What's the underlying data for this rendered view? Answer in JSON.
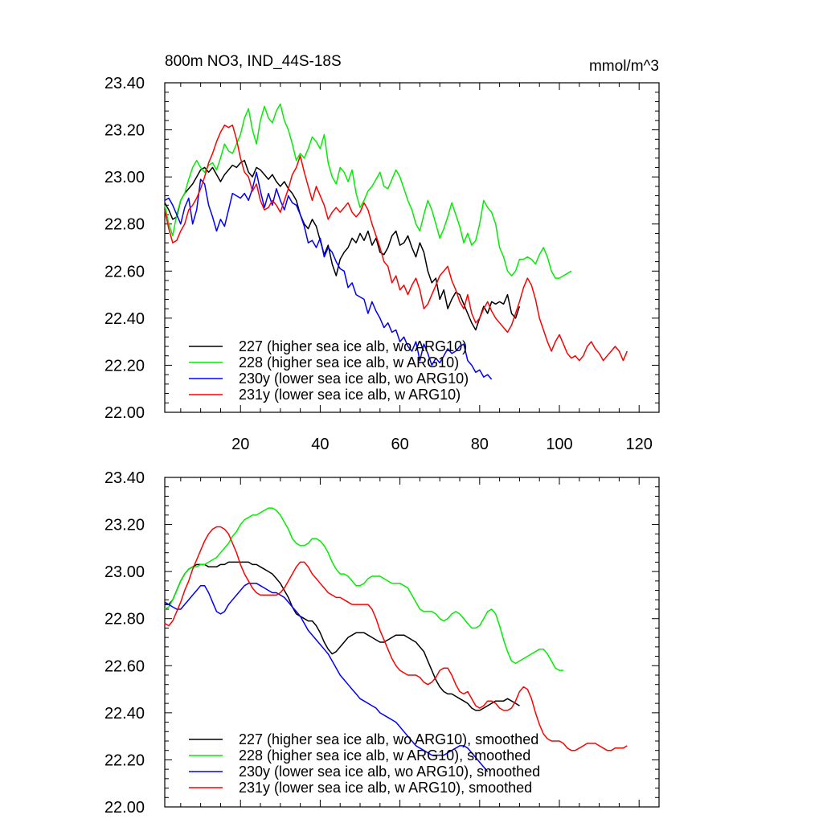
{
  "chart_data": [
    {
      "type": "line",
      "title_left": "800m NO3, IND_44S-18S",
      "title_right": "mmol/m^3",
      "xlabel": "",
      "ylabel": "",
      "xlim": [
        1,
        125
      ],
      "ylim": [
        22.0,
        23.4
      ],
      "y_ticks": [
        22.0,
        22.2,
        22.4,
        22.6,
        22.8,
        23.0,
        23.2,
        23.4
      ],
      "y_tick_labels": [
        "22.00",
        "22.20",
        "22.40",
        "22.60",
        "22.80",
        "23.00",
        "23.20",
        "23.40"
      ],
      "x_ticks": [
        20,
        40,
        60,
        80,
        100,
        120
      ],
      "x_tick_labels": [
        "20",
        "40",
        "60",
        "80",
        "100",
        "120"
      ],
      "show_x_tick_labels": true,
      "legend_position": "bottom-left",
      "series": [
        {
          "name": "227 (higher sea ice alb, wo ARG10)",
          "color": "#000000",
          "x_start": 1,
          "values": [
            22.89,
            22.86,
            22.82,
            22.83,
            22.9,
            22.93,
            22.95,
            22.97,
            23.0,
            23.03,
            23.04,
            23.02,
            23.04,
            23.01,
            22.98,
            23.01,
            23.03,
            23.05,
            23.04,
            23.06,
            23.07,
            23.02,
            23.0,
            23.04,
            23.03,
            23.01,
            22.99,
            23.01,
            22.98,
            22.96,
            22.98,
            22.95,
            22.93,
            22.9,
            22.84,
            22.8,
            22.78,
            22.82,
            22.79,
            22.73,
            22.67,
            22.71,
            22.63,
            22.58,
            22.65,
            22.68,
            22.7,
            22.74,
            22.72,
            22.76,
            22.73,
            22.77,
            22.71,
            22.74,
            22.68,
            22.67,
            22.7,
            22.75,
            22.77,
            22.71,
            22.72,
            22.75,
            22.7,
            22.66,
            22.72,
            22.68,
            22.6,
            22.55,
            22.57,
            22.48,
            22.52,
            22.44,
            22.48,
            22.51,
            22.5,
            22.46,
            22.42,
            22.38,
            22.35,
            22.4,
            22.45,
            22.42,
            22.47,
            22.46,
            22.47,
            22.46,
            22.5,
            22.42,
            22.4,
            22.45
          ]
        },
        {
          "name": "228 (higher sea ice alb, w ARG10)",
          "color": "#00ee00",
          "x_start": 1,
          "values": [
            22.88,
            22.8,
            22.75,
            22.84,
            22.9,
            22.93,
            22.99,
            23.04,
            23.07,
            23.04,
            23.02,
            23.05,
            23.06,
            23.03,
            23.08,
            23.14,
            23.11,
            23.1,
            23.14,
            23.18,
            23.25,
            23.29,
            23.2,
            23.14,
            23.24,
            23.3,
            23.25,
            23.23,
            23.28,
            23.31,
            23.24,
            23.2,
            23.14,
            23.07,
            23.1,
            23.08,
            23.12,
            23.17,
            23.15,
            23.12,
            23.18,
            23.06,
            23.0,
            22.97,
            23.04,
            23.02,
            22.98,
            23.03,
            22.93,
            22.87,
            22.9,
            22.94,
            22.96,
            22.99,
            23.02,
            22.96,
            22.95,
            22.99,
            23.03,
            23.0,
            22.95,
            22.9,
            22.86,
            22.8,
            22.77,
            22.84,
            22.9,
            22.86,
            22.8,
            22.74,
            22.78,
            22.83,
            22.89,
            22.84,
            22.79,
            22.72,
            22.76,
            22.71,
            22.73,
            22.8,
            22.9,
            22.87,
            22.85,
            22.8,
            22.7,
            22.66,
            22.6,
            22.58,
            22.6,
            22.65,
            22.65,
            22.66,
            22.65,
            22.63,
            22.67,
            22.7,
            22.66,
            22.6,
            22.57,
            22.57,
            22.58,
            22.59,
            22.6
          ]
        },
        {
          "name": "230y (lower sea ice alb, wo ARG10)",
          "color": "#0000ff",
          "x_start": 1,
          "values": [
            22.9,
            22.91,
            22.88,
            22.84,
            22.8,
            22.87,
            22.91,
            22.8,
            22.86,
            22.99,
            22.97,
            22.88,
            22.83,
            22.77,
            22.82,
            22.79,
            22.86,
            22.93,
            22.92,
            22.91,
            22.93,
            22.9,
            22.95,
            23.02,
            22.94,
            22.87,
            22.93,
            22.88,
            22.95,
            22.9,
            22.86,
            22.92,
            22.89,
            22.88,
            22.84,
            22.79,
            22.72,
            22.73,
            22.7,
            22.74,
            22.66,
            22.7,
            22.68,
            22.64,
            22.61,
            22.6,
            22.53,
            22.55,
            22.5,
            22.49,
            22.48,
            22.42,
            22.47,
            22.43,
            22.4,
            22.36,
            22.38,
            22.34,
            22.35,
            22.3,
            22.32,
            22.28,
            22.26,
            22.3,
            22.22,
            22.29,
            22.25,
            22.2,
            22.23,
            22.21,
            22.24,
            22.27,
            22.25,
            22.26,
            22.28,
            22.29,
            22.22,
            22.2,
            22.17,
            22.18,
            22.15,
            22.16,
            22.14
          ]
        },
        {
          "name": "231y (lower sea ice alb, w ARG10)",
          "color": "#ff0000",
          "x_start": 1,
          "values": [
            22.86,
            22.78,
            22.72,
            22.73,
            22.77,
            22.8,
            22.86,
            22.88,
            22.91,
            22.95,
            23.0,
            23.06,
            23.1,
            23.15,
            23.19,
            23.22,
            23.21,
            23.22,
            23.16,
            23.08,
            23.02,
            23.0,
            22.94,
            22.97,
            22.9,
            22.86,
            22.87,
            22.9,
            22.88,
            22.85,
            22.9,
            22.95,
            23.01,
            23.04,
            23.09,
            23.02,
            22.96,
            22.9,
            22.96,
            22.92,
            22.88,
            22.82,
            22.85,
            22.87,
            22.85,
            22.87,
            22.89,
            22.85,
            22.83,
            22.85,
            22.89,
            22.86,
            22.8,
            22.75,
            22.7,
            22.64,
            22.62,
            22.55,
            22.58,
            22.52,
            22.54,
            22.5,
            22.54,
            22.57,
            22.52,
            22.44,
            22.46,
            22.5,
            22.54,
            22.58,
            22.6,
            22.62,
            22.56,
            22.52,
            22.47,
            22.44,
            22.5,
            22.42,
            22.38,
            22.4,
            22.44,
            22.47,
            22.43,
            22.4,
            22.38,
            22.36,
            22.34,
            22.37,
            22.42,
            22.47,
            22.53,
            22.57,
            22.54,
            22.48,
            22.4,
            22.35,
            22.3,
            22.26,
            22.3,
            22.33,
            22.29,
            22.25,
            22.23,
            22.24,
            22.22,
            22.24,
            22.28,
            22.3,
            22.27,
            22.25,
            22.22,
            22.24,
            22.26,
            22.28,
            22.26,
            22.22,
            22.26
          ]
        }
      ]
    },
    {
      "type": "line",
      "xlim": [
        1,
        125
      ],
      "ylim": [
        22.0,
        23.4
      ],
      "y_ticks": [
        22.0,
        22.2,
        22.4,
        22.6,
        22.8,
        23.0,
        23.2,
        23.4
      ],
      "y_tick_labels": [
        "22.00",
        "22.20",
        "22.40",
        "22.60",
        "22.80",
        "23.00",
        "23.20",
        "23.40"
      ],
      "x_ticks": [
        20,
        40,
        60,
        80,
        100,
        120
      ],
      "show_x_tick_labels": false,
      "legend_position": "bottom-left",
      "series": [
        {
          "name": "227 (higher sea ice alb, wo ARG10), smoothed",
          "color": "#000000",
          "x_start": 1,
          "values": [
            22.86,
            22.86,
            22.88,
            22.92,
            22.96,
            22.99,
            23.01,
            23.02,
            23.03,
            23.03,
            23.03,
            23.02,
            23.02,
            23.02,
            23.03,
            23.03,
            23.04,
            23.04,
            23.04,
            23.04,
            23.04,
            23.04,
            23.03,
            23.03,
            23.02,
            23.01,
            23.0,
            22.99,
            22.97,
            22.95,
            22.92,
            22.89,
            22.85,
            22.82,
            22.81,
            22.8,
            22.79,
            22.79,
            22.77,
            22.74,
            22.7,
            22.67,
            22.65,
            22.66,
            22.68,
            22.7,
            22.72,
            22.73,
            22.74,
            22.74,
            22.74,
            22.73,
            22.72,
            22.71,
            22.7,
            22.7,
            22.71,
            22.72,
            22.73,
            22.73,
            22.73,
            22.72,
            22.71,
            22.7,
            22.68,
            22.66,
            22.62,
            22.58,
            22.54,
            22.51,
            22.49,
            22.48,
            22.48,
            22.47,
            22.46,
            22.45,
            22.44,
            22.42,
            22.41,
            22.41,
            22.42,
            22.43,
            22.44,
            22.45,
            22.45,
            22.45,
            22.46,
            22.45,
            22.44,
            22.43
          ]
        },
        {
          "name": "228 (higher sea ice alb, w ARG10), smoothed",
          "color": "#00ee00",
          "x_start": 1,
          "values": [
            22.84,
            22.85,
            22.88,
            22.92,
            22.96,
            22.99,
            23.01,
            23.02,
            23.02,
            23.03,
            23.03,
            23.04,
            23.05,
            23.06,
            23.08,
            23.1,
            23.12,
            23.15,
            23.17,
            23.2,
            23.22,
            23.23,
            23.24,
            23.24,
            23.25,
            23.26,
            23.27,
            23.27,
            23.26,
            23.24,
            23.21,
            23.18,
            23.14,
            23.12,
            23.11,
            23.11,
            23.12,
            23.14,
            23.14,
            23.13,
            23.11,
            23.08,
            23.04,
            23.01,
            22.99,
            22.99,
            22.98,
            22.96,
            22.94,
            22.94,
            22.95,
            22.97,
            22.98,
            22.98,
            22.98,
            22.97,
            22.96,
            22.95,
            22.95,
            22.95,
            22.94,
            22.93,
            22.9,
            22.87,
            22.84,
            22.83,
            22.83,
            22.83,
            22.82,
            22.8,
            22.79,
            22.8,
            22.82,
            22.83,
            22.82,
            22.8,
            22.78,
            22.76,
            22.76,
            22.77,
            22.8,
            22.83,
            22.84,
            22.82,
            22.77,
            22.71,
            22.66,
            22.62,
            22.61,
            22.62,
            22.63,
            22.64,
            22.65,
            22.66,
            22.67,
            22.67,
            22.65,
            22.62,
            22.59,
            22.58,
            22.58
          ]
        },
        {
          "name": "230y (lower sea ice alb, wo ARG10), smoothed",
          "color": "#0000ff",
          "x_start": 1,
          "values": [
            22.87,
            22.86,
            22.85,
            22.84,
            22.84,
            22.86,
            22.88,
            22.9,
            22.92,
            22.94,
            22.94,
            22.91,
            22.87,
            22.83,
            22.82,
            22.83,
            22.86,
            22.88,
            22.9,
            22.92,
            22.94,
            22.95,
            22.95,
            22.95,
            22.94,
            22.93,
            22.92,
            22.91,
            22.91,
            22.9,
            22.89,
            22.87,
            22.85,
            22.83,
            22.81,
            22.78,
            22.75,
            22.73,
            22.71,
            22.69,
            22.67,
            22.65,
            22.62,
            22.59,
            22.56,
            22.54,
            22.52,
            22.5,
            22.48,
            22.46,
            22.45,
            22.44,
            22.43,
            22.42,
            22.4,
            22.39,
            22.38,
            22.37,
            22.36,
            22.34,
            22.32,
            22.3,
            22.28,
            22.26,
            22.25,
            22.24,
            22.23,
            22.22,
            22.22,
            22.22,
            22.22,
            22.23,
            22.24,
            22.25,
            22.26,
            22.26,
            22.25,
            22.23,
            22.21,
            22.19,
            22.17,
            22.15
          ]
        },
        {
          "name": "231y (lower sea ice alb, w ARG10), smoothed",
          "color": "#ff0000",
          "x_start": 1,
          "values": [
            22.78,
            22.77,
            22.79,
            22.83,
            22.87,
            22.92,
            22.96,
            23.01,
            23.05,
            23.09,
            23.13,
            23.16,
            23.18,
            23.19,
            23.19,
            23.18,
            23.16,
            23.12,
            23.08,
            23.03,
            22.99,
            22.96,
            22.93,
            22.91,
            22.9,
            22.9,
            22.9,
            22.9,
            22.9,
            22.91,
            22.93,
            22.96,
            22.99,
            23.02,
            23.04,
            23.04,
            23.02,
            22.99,
            22.97,
            22.95,
            22.93,
            22.91,
            22.9,
            22.89,
            22.89,
            22.88,
            22.87,
            22.86,
            22.86,
            22.86,
            22.86,
            22.86,
            22.84,
            22.8,
            22.75,
            22.71,
            22.67,
            22.63,
            22.6,
            22.58,
            22.57,
            22.56,
            22.56,
            22.56,
            22.55,
            22.53,
            22.52,
            22.53,
            22.55,
            22.58,
            22.59,
            22.59,
            22.56,
            22.52,
            22.49,
            22.48,
            22.49,
            22.46,
            22.43,
            22.42,
            22.43,
            22.45,
            22.45,
            22.44,
            22.42,
            22.41,
            22.41,
            22.42,
            22.45,
            22.49,
            22.51,
            22.5,
            22.46,
            22.4,
            22.35,
            22.31,
            22.29,
            22.28,
            22.28,
            22.28,
            22.27,
            22.25,
            22.24,
            22.24,
            22.25,
            22.26,
            22.27,
            22.27,
            22.27,
            22.26,
            22.25,
            22.24,
            22.24,
            22.25,
            22.25,
            22.25,
            22.26
          ]
        }
      ]
    }
  ]
}
